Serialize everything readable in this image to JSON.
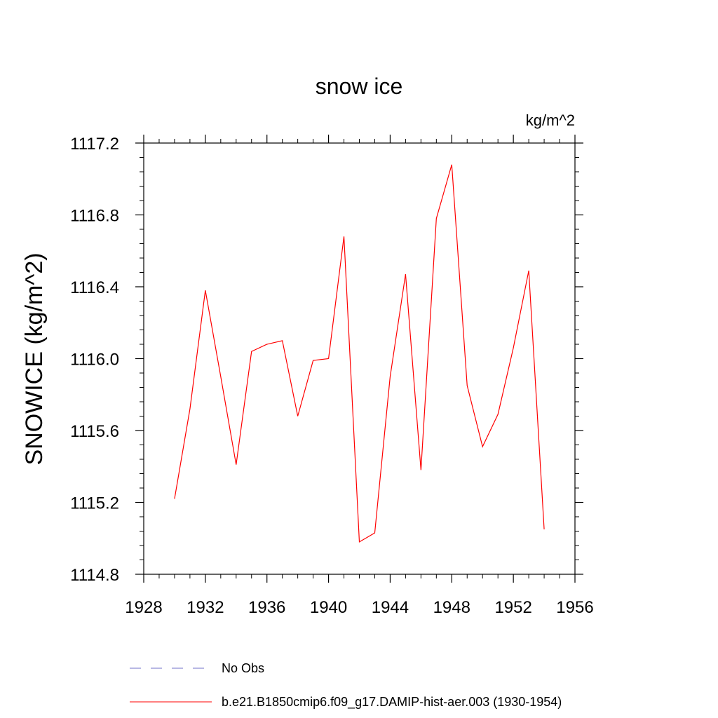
{
  "chart_data": {
    "type": "line",
    "title": "snow ice",
    "units_label": "kg/m^2",
    "xlabel": "",
    "ylabel": "SNOWICE  (kg/m^2)",
    "xlim": [
      1928,
      1956
    ],
    "ylim": [
      1114.8,
      1117.2
    ],
    "x_ticks": [
      1928,
      1932,
      1936,
      1940,
      1944,
      1948,
      1952,
      1956
    ],
    "x_tick_labels": [
      "1928",
      "1932",
      "1936",
      "1940",
      "1944",
      "1948",
      "1952",
      "1956"
    ],
    "y_ticks": [
      1114.8,
      1115.2,
      1115.6,
      1116.0,
      1116.4,
      1116.8,
      1117.2
    ],
    "y_tick_labels": [
      "1114.8",
      "1115.2",
      "1115.6",
      "1116.0",
      "1116.4",
      "1116.8",
      "1117.2"
    ],
    "grid": false,
    "legend_position": "bottom",
    "series": [
      {
        "name": "b.e21.B1850cmip6.f09_g17.DAMIP-hist-aer.003 (1930-1954)",
        "color": "#ff0000",
        "style": "solid",
        "x": [
          1930,
          1931,
          1932,
          1933,
          1934,
          1935,
          1936,
          1937,
          1938,
          1939,
          1940,
          1941,
          1942,
          1943,
          1944,
          1945,
          1946,
          1947,
          1948,
          1949,
          1950,
          1951,
          1952,
          1953,
          1954
        ],
        "y": [
          1115.22,
          1115.72,
          1116.38,
          1115.9,
          1115.41,
          1116.04,
          1116.08,
          1116.1,
          1115.68,
          1115.99,
          1116.0,
          1116.68,
          1114.98,
          1115.03,
          1115.9,
          1116.47,
          1115.38,
          1116.78,
          1117.08,
          1115.85,
          1115.51,
          1115.69,
          1116.06,
          1116.49,
          1115.05
        ]
      }
    ],
    "legend_entries": [
      {
        "label": "No Obs",
        "color": "#7070c8",
        "style": "dashed"
      },
      {
        "label": "b.e21.B1850cmip6.f09_g17.DAMIP-hist-aer.003 (1930-1954)",
        "color": "#ff0000",
        "style": "solid"
      }
    ]
  }
}
